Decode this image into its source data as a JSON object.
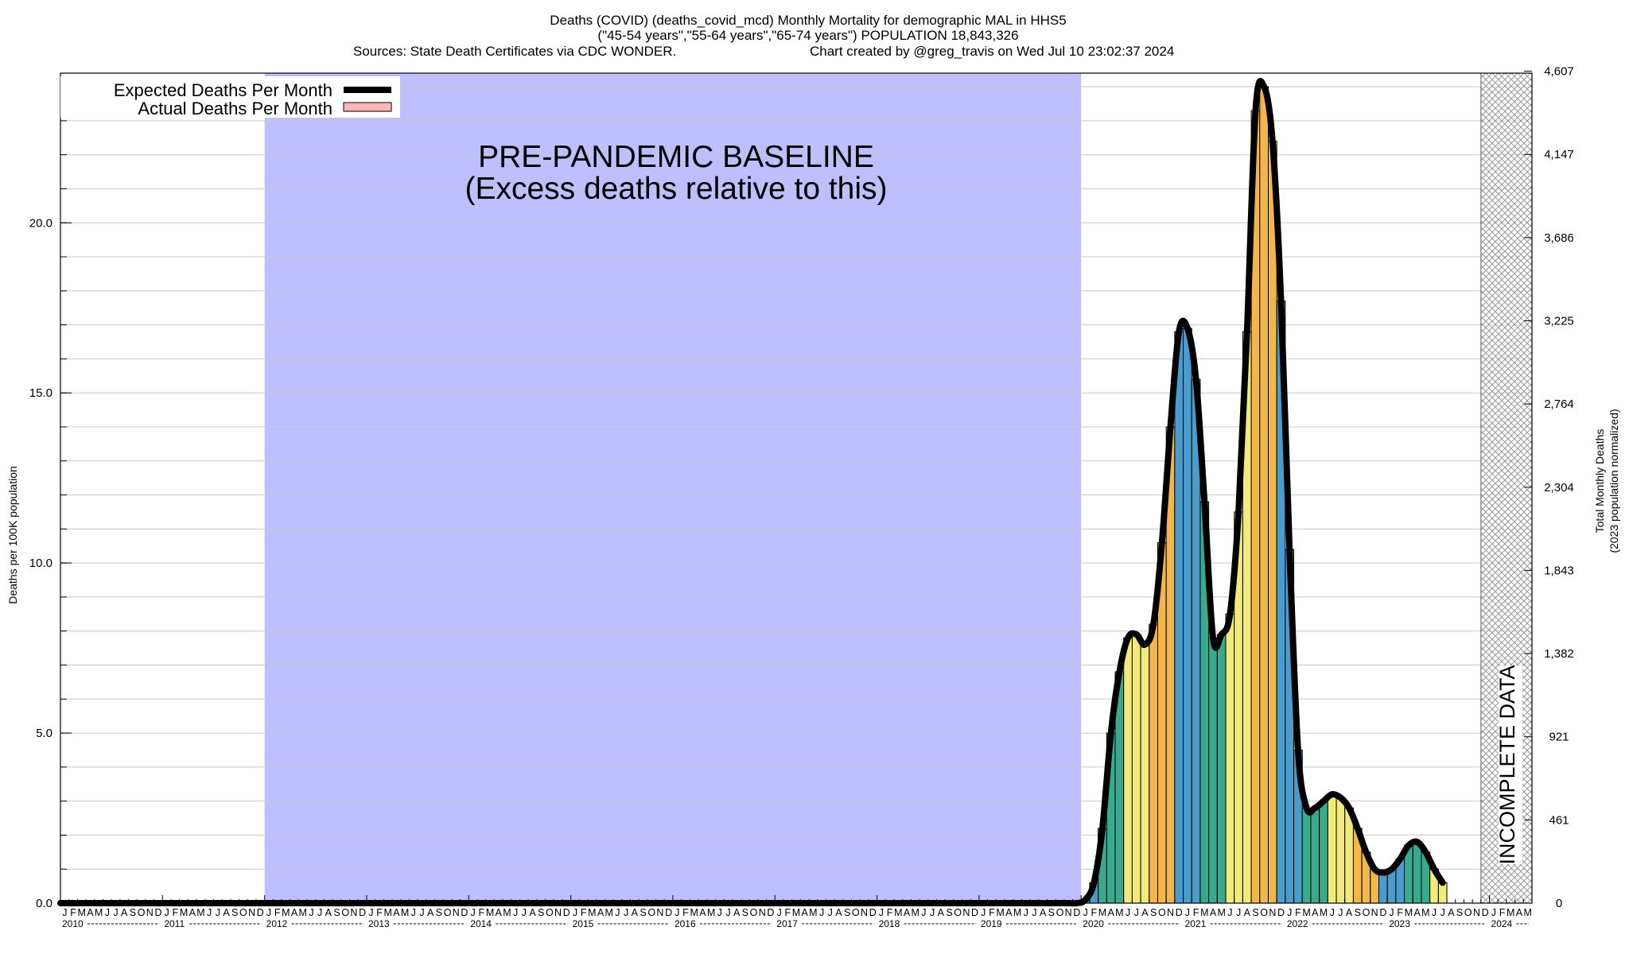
{
  "chart_data": {
    "type": "bar",
    "title_lines": [
      "Deaths (COVID) (deaths_covid_mcd) Monthly Mortality for demographic MAL in HHS5",
      "(\"45-54 years\",\"55-64 years\",\"65-74 years\") POPULATION 18,843,326"
    ],
    "sources_text": "Sources: State Death Certificates via CDC WONDER.",
    "credit_text": "Chart created by @greg_travis on Wed Jul 10 23:02:37 2024",
    "ylabel": "Deaths per 100K population",
    "ylabel_right": [
      "Total Monthly Deaths",
      "(2023 population normalized)"
    ],
    "ylim": [
      0,
      24.4
    ],
    "y_ticks": [
      0,
      5,
      10,
      15,
      20
    ],
    "y_tick_labels": [
      "0.0",
      "5.0",
      "10.0",
      "15.0",
      "20.0"
    ],
    "y_right_ticks": [
      0,
      2.446,
      4.891,
      7.337,
      9.783,
      12.228,
      14.674,
      17.12,
      19.565,
      22.011,
      24.457
    ],
    "y_right_tick_labels": [
      "0",
      "461",
      "921",
      "1,382",
      "1,843",
      "2,304",
      "2,764",
      "3,225",
      "3,686",
      "4,147",
      "4,607"
    ],
    "month_letters": [
      "J",
      "F",
      "M",
      "A",
      "M",
      "J",
      "J",
      "A",
      "S",
      "O",
      "N",
      "D"
    ],
    "years": [
      "2010",
      "2011",
      "2012",
      "2013",
      "2014",
      "2015",
      "2016",
      "2017",
      "2018",
      "2019",
      "2020",
      "2021",
      "2022",
      "2023",
      "2024"
    ],
    "start": "2010-01",
    "end": "2024-05",
    "baseline_region": {
      "start": "2012-01",
      "end": "2019-12"
    },
    "baseline_text": [
      "PRE-PANDEMIC BASELINE",
      "(Excess deaths relative to this)"
    ],
    "incomplete_region": {
      "start": "2023-12",
      "end": "2024-05"
    },
    "incomplete_text": "INCOMPLETE DATA",
    "legend": [
      {
        "label": "Expected Deaths Per Month",
        "kind": "line",
        "color": "#000000"
      },
      {
        "label": "Actual Deaths Per Month",
        "kind": "box",
        "color": "#ffb6b6"
      }
    ],
    "legend_position": "top-left",
    "grid": true,
    "colors": {
      "baseline": "#bfbfff",
      "winter": "#4a9ccc",
      "spring": "#3aaa8c",
      "summer": "#f2ea7a",
      "autumn": "#f2b64a",
      "expected_line": "#000000"
    },
    "covid_start": "2020-01",
    "series": [
      {
        "name": "Actual Deaths Per Month",
        "values": [
          0.1,
          0.6,
          2.2,
          5.0,
          6.8,
          7.8,
          7.9,
          7.6,
          8.2,
          10.6,
          14.0,
          16.8,
          16.9,
          15.4,
          11.8,
          7.8,
          7.9,
          8.5,
          11.5,
          16.8,
          23.3,
          24.0,
          22.4,
          17.7,
          10.4,
          4.5,
          2.8,
          2.8,
          3.0,
          3.2,
          3.1,
          2.8,
          2.2,
          1.5,
          1.0,
          0.9,
          1.0,
          1.3,
          1.7,
          1.8,
          1.5,
          1.0,
          0.6
        ]
      },
      {
        "name": "Expected Deaths Per Month",
        "values": [
          0.1,
          0.6,
          2.2,
          5.0,
          6.8,
          7.8,
          7.9,
          7.6,
          8.2,
          10.6,
          14.0,
          16.8,
          16.9,
          15.4,
          11.8,
          7.8,
          7.9,
          8.5,
          11.5,
          16.8,
          23.3,
          24.0,
          22.4,
          17.7,
          10.4,
          4.5,
          2.8,
          2.8,
          3.0,
          3.2,
          3.1,
          2.8,
          2.2,
          1.5,
          1.0,
          0.9,
          1.0,
          1.3,
          1.7,
          1.8,
          1.5,
          1.0,
          0.6
        ]
      }
    ]
  }
}
